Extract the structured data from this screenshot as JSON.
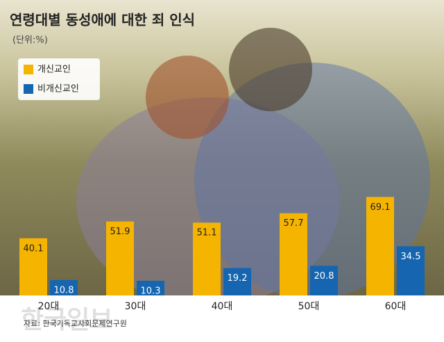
{
  "chart_data": {
    "type": "bar",
    "title": "연령대별 동성애에 대한 죄 인식",
    "subtitle": "(단위:%)",
    "categories": [
      "20대",
      "30대",
      "40대",
      "50대",
      "60대"
    ],
    "series": [
      {
        "name": "개신교인",
        "color": "#f5b400",
        "values": [
          40.1,
          51.9,
          51.1,
          57.7,
          69.1
        ]
      },
      {
        "name": "비개신교인",
        "color": "#1565b0",
        "values": [
          10.8,
          10.3,
          19.2,
          20.8,
          34.5
        ]
      }
    ],
    "source": "자료: 한국기독교사회문제연구원",
    "watermark": "한국일보"
  }
}
